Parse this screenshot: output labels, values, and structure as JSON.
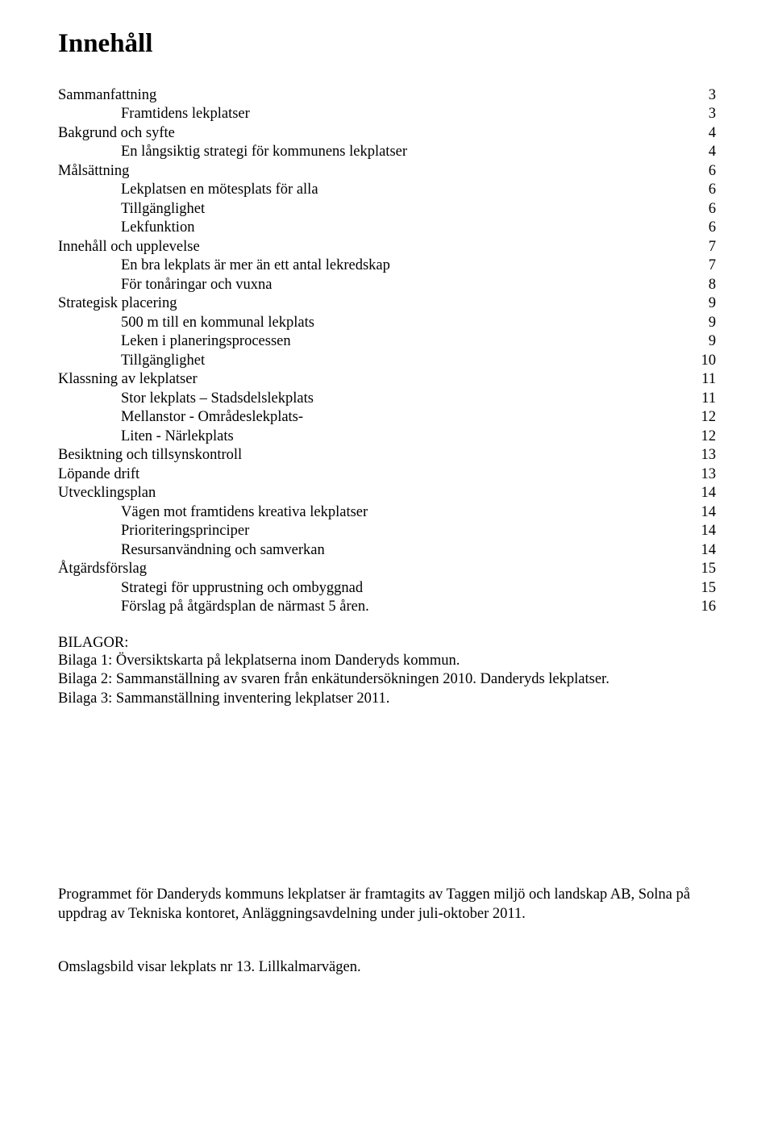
{
  "title": "Innehåll",
  "toc": [
    {
      "label": "Sammanfattning",
      "page": "3",
      "indent": false
    },
    {
      "label": "Framtidens lekplatser",
      "page": "3",
      "indent": true
    },
    {
      "label": "Bakgrund och syfte",
      "page": "4",
      "indent": false
    },
    {
      "label": "En långsiktig strategi för kommunens lekplatser",
      "page": "4",
      "indent": true
    },
    {
      "label": "Målsättning",
      "page": "6",
      "indent": false
    },
    {
      "label": "Lekplatsen en mötesplats för alla",
      "page": "6",
      "indent": true
    },
    {
      "label": "Tillgänglighet",
      "page": "6",
      "indent": true
    },
    {
      "label": "Lekfunktion",
      "page": "6",
      "indent": true
    },
    {
      "label": "Innehåll och upplevelse",
      "page": "7",
      "indent": false
    },
    {
      "label": "En bra lekplats är mer än ett antal lekredskap",
      "page": "7",
      "indent": true
    },
    {
      "label": "För tonåringar och vuxna",
      "page": "8",
      "indent": true
    },
    {
      "label": "Strategisk placering",
      "page": "9",
      "indent": false
    },
    {
      "label": "500 m till en kommunal lekplats",
      "page": "9",
      "indent": true
    },
    {
      "label": "Leken i planeringsprocessen",
      "page": "9",
      "indent": true
    },
    {
      "label": "Tillgänglighet",
      "page": "10",
      "indent": true
    },
    {
      "label": "Klassning av lekplatser",
      "page": "11",
      "indent": false
    },
    {
      "label": "Stor lekplats – Stadsdelslekplats",
      "page": "11",
      "indent": true
    },
    {
      "label": "Mellanstor - Områdeslekplats-",
      "page": "12",
      "indent": true
    },
    {
      "label": "Liten  - Närlekplats",
      "page": "12",
      "indent": true
    },
    {
      "label": "Besiktning och tillsynskontroll",
      "page": "13",
      "indent": false
    },
    {
      "label": "Löpande drift",
      "page": "13",
      "indent": false
    },
    {
      "label": "Utvecklingsplan",
      "page": "14",
      "indent": false
    },
    {
      "label": "Vägen mot framtidens kreativa lekplatser",
      "page": "14",
      "indent": true
    },
    {
      "label": "Prioriteringsprinciper",
      "page": "14",
      "indent": true
    },
    {
      "label": "Resursanvändning och samverkan",
      "page": "14",
      "indent": true
    },
    {
      "label": "Åtgärdsförslag",
      "page": "15",
      "indent": false
    },
    {
      "label": "Strategi för upprustning och ombyggnad",
      "page": "15",
      "indent": true
    },
    {
      "label": "Förslag på åtgärdsplan de närmast 5 åren.",
      "page": "16",
      "indent": true
    }
  ],
  "bilagor_heading": "BILAGOR:",
  "bilagor": [
    "Bilaga 1: Översiktskarta  på lekplatserna inom Danderyds kommun.",
    "Bilaga 2: Sammanställning av svaren från enkätundersökningen 2010. Danderyds lekplatser.",
    "Bilaga 3: Sammanställning inventering lekplatser 2011."
  ],
  "footer_paragraph": "Programmet för Danderyds kommuns lekplatser är framtagits av Taggen miljö och landskap AB, Solna på uppdrag av Tekniska kontoret, Anläggningsavdelning under juli-oktober 2011.",
  "caption": "Omslagsbild visar lekplats nr 13. Lillkalmarvägen."
}
